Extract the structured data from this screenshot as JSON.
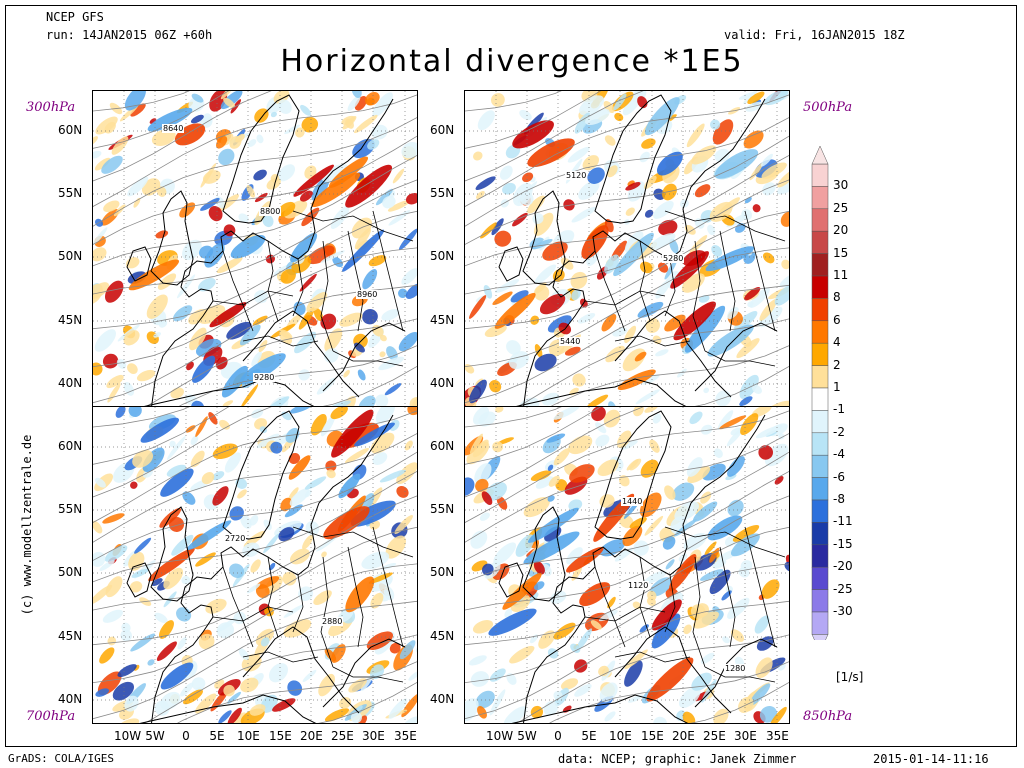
{
  "header": {
    "model": "NCEP GFS",
    "run": "run: 14JAN2015 06Z +60h",
    "valid": "valid: Fri, 16JAN2015 18Z",
    "title": "Horizontal divergence *1E5"
  },
  "panels": [
    {
      "level": "300hPa",
      "contours": [
        "8640",
        "8800",
        "8960",
        "9280"
      ]
    },
    {
      "level": "500hPa",
      "contours": [
        "5120",
        "5280",
        "5440"
      ]
    },
    {
      "level": "700hPa",
      "contours": [
        "2720",
        "2880"
      ]
    },
    {
      "level": "850hPa",
      "contours": [
        "1120",
        "1280",
        "1440"
      ]
    }
  ],
  "lat_labels": [
    "60N",
    "55N",
    "50N",
    "45N",
    "40N"
  ],
  "lon_labels": [
    "10W",
    "5W",
    "0",
    "5E",
    "10E",
    "15E",
    "20E",
    "25E",
    "30E",
    "35E"
  ],
  "colorbar": {
    "labels": [
      "30",
      "25",
      "20",
      "15",
      "11",
      "8",
      "6",
      "4",
      "2",
      "1",
      "-1",
      "-2",
      "-4",
      "-6",
      "-8",
      "-11",
      "-15",
      "-20",
      "-25",
      "-30"
    ],
    "colors": [
      "#f8d2d2",
      "#f0a0a0",
      "#e07070",
      "#c84848",
      "#a02020",
      "#c80000",
      "#f04000",
      "#ff7800",
      "#ffa800",
      "#ffe09a",
      "#ffffff",
      "#e0f4fc",
      "#b8e4f6",
      "#88c8f0",
      "#58a8ec",
      "#2c70dc",
      "#1a3ca8",
      "#2a2aa0",
      "#5a4ad0",
      "#8c7ae8",
      "#b4a8f4"
    ],
    "unit": "[1/s]"
  },
  "footer": {
    "left": "GrADS: COLA/IGES",
    "credit": "data: NCEP; graphic: Janek Zimmer",
    "timestamp": "2015-01-14-11:16",
    "side": "(c) www.modellzentrale.de"
  }
}
